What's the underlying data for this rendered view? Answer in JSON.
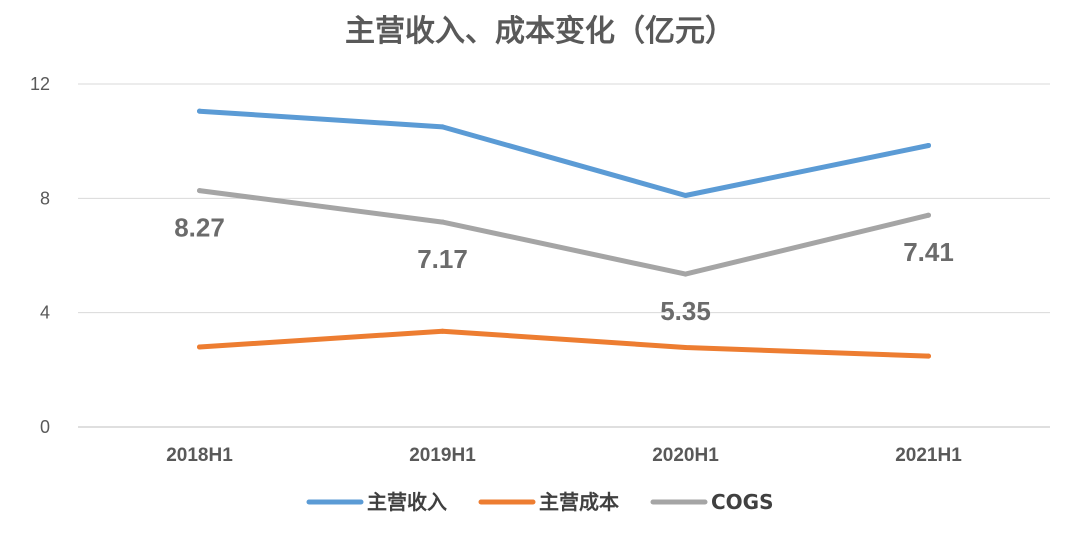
{
  "chart_data": {
    "type": "line",
    "title": "主营收入、成本变化（亿元）",
    "categories": [
      "2018H1",
      "2019H1",
      "2020H1",
      "2021H1"
    ],
    "ylim": [
      0,
      12
    ],
    "yticks": [
      0,
      4,
      8,
      12
    ],
    "grid": true,
    "legend_position": "bottom",
    "series": [
      {
        "name": "主营收入",
        "values": [
          11.05,
          10.5,
          8.1,
          9.85
        ],
        "color": "#5b9bd5",
        "labels": null
      },
      {
        "name": "主营成本",
        "values": [
          2.8,
          3.35,
          2.78,
          2.48
        ],
        "color": "#ed7d31",
        "labels": null
      },
      {
        "name": "COGS",
        "values": [
          8.27,
          7.17,
          5.35,
          7.41
        ],
        "color": "#a5a5a5",
        "labels": [
          "8.27",
          "7.17",
          "5.35",
          "7.41"
        ]
      }
    ]
  }
}
